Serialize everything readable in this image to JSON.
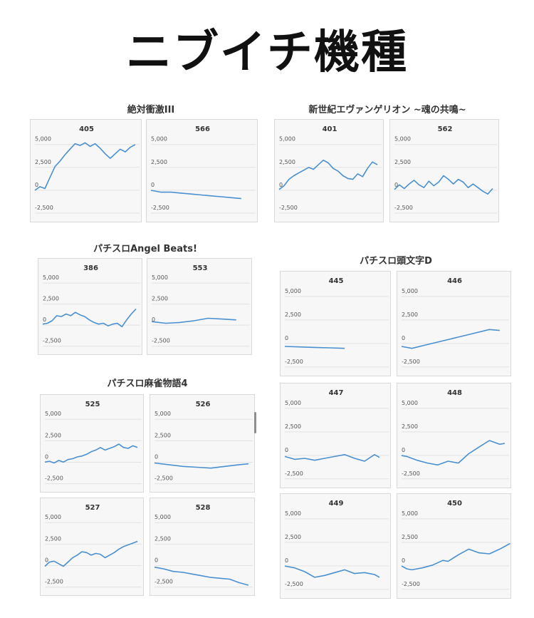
{
  "page_title": "ニブイチ機種",
  "style": {
    "line_color": "#4a90d0",
    "grid_color": "#e2e2e2",
    "panel_bg": "#f7f7f7",
    "panel_border": "#d9d9d9",
    "text_color": "#555555"
  },
  "groups": [
    {
      "title": "絶対衝激III"
    },
    {
      "title": "新世紀エヴァンゲリオン ~魂の共鳴~"
    },
    {
      "title": "パチスロAngel Beats!"
    },
    {
      "title": "パチスロ頭文字D"
    },
    {
      "title": "パチスロ麻雀物語4"
    }
  ],
  "chart_data": [
    {
      "type": "line",
      "title": "405",
      "group": "絶対衝激III",
      "yticks": [
        5000,
        2500,
        0,
        -2500
      ],
      "ytick_labels": [
        "5,000",
        "2,500",
        "0",
        "-2,500"
      ],
      "ylim": [
        -3200,
        5600
      ],
      "xlim": [
        0,
        20
      ],
      "series": [
        {
          "x": [
            0,
            1,
            2,
            3,
            4,
            5,
            6,
            7,
            8,
            9,
            10,
            11,
            12,
            13,
            14,
            15,
            16,
            17,
            18,
            19,
            20
          ],
          "y": [
            -400,
            0,
            -200,
            1000,
            2200,
            2800,
            3500,
            4100,
            4700,
            4500,
            4800,
            4400,
            4700,
            4200,
            3600,
            3100,
            3600,
            4100,
            3800,
            4300,
            4600
          ]
        }
      ]
    },
    {
      "type": "line",
      "title": "566",
      "group": "絶対衝激III",
      "yticks": [
        5000,
        2500,
        0,
        -2500
      ],
      "ytick_labels": [
        "5,000",
        "2,500",
        "0",
        "-2,500"
      ],
      "ylim": [
        -3200,
        5600
      ],
      "xlim": [
        0,
        20
      ],
      "series": [
        {
          "x": [
            0,
            2,
            4,
            6,
            8,
            10,
            12,
            14,
            16,
            18
          ],
          "y": [
            -400,
            -600,
            -600,
            -700,
            -800,
            -900,
            -1000,
            -1100,
            -1200,
            -1300
          ]
        }
      ]
    },
    {
      "type": "line",
      "title": "401",
      "group": "新世紀エヴァンゲリオン ~魂の共鳴~",
      "yticks": [
        5000,
        2500,
        0,
        -2500
      ],
      "ytick_labels": [
        "5,000",
        "2,500",
        "0",
        "-2,500"
      ],
      "ylim": [
        -3200,
        5600
      ],
      "xlim": [
        0,
        20
      ],
      "series": [
        {
          "x": [
            0,
            1,
            2,
            3,
            4,
            5,
            6,
            7,
            8,
            9,
            10,
            11,
            12,
            13,
            14,
            15,
            16,
            17,
            18,
            19,
            20
          ],
          "y": [
            -300,
            100,
            800,
            1200,
            1500,
            1800,
            2100,
            1900,
            2400,
            2900,
            2600,
            2000,
            1700,
            1200,
            900,
            800,
            1400,
            1100,
            2000,
            2700,
            2400
          ]
        }
      ]
    },
    {
      "type": "line",
      "title": "562",
      "group": "新世紀エヴァンゲリオン ~魂の共鳴~",
      "yticks": [
        5000,
        2500,
        0,
        -2500
      ],
      "ytick_labels": [
        "5,000",
        "2,500",
        "0",
        "-2,500"
      ],
      "ylim": [
        -3200,
        5600
      ],
      "xlim": [
        0,
        20
      ],
      "series": [
        {
          "x": [
            0,
            1,
            2,
            3,
            4,
            5,
            6,
            7,
            8,
            9,
            10,
            11,
            12,
            13,
            14,
            15,
            16,
            17,
            18,
            19,
            20
          ],
          "y": [
            -300,
            200,
            -200,
            300,
            700,
            200,
            -100,
            600,
            100,
            500,
            1200,
            800,
            300,
            800,
            500,
            -100,
            300,
            -100,
            -500,
            -800,
            -200
          ]
        }
      ]
    },
    {
      "type": "line",
      "title": "386",
      "group": "パチスロAngel Beats!",
      "yticks": [
        5000,
        2500,
        0,
        -2500
      ],
      "ytick_labels": [
        "5,000",
        "2,500",
        "0",
        "-2,500"
      ],
      "ylim": [
        -3200,
        5600
      ],
      "xlim": [
        0,
        20
      ],
      "series": [
        {
          "x": [
            0,
            1,
            2,
            3,
            4,
            5,
            6,
            7,
            8,
            9,
            10,
            11,
            12,
            13,
            14,
            15,
            16,
            17,
            18,
            19,
            20
          ],
          "y": [
            -300,
            -200,
            100,
            700,
            600,
            900,
            700,
            1100,
            800,
            600,
            200,
            -100,
            -300,
            -200,
            -500,
            -300,
            -200,
            -600,
            200,
            900,
            1500
          ]
        }
      ]
    },
    {
      "type": "line",
      "title": "553",
      "group": "パチスロAngel Beats!",
      "yticks": [
        5000,
        2500,
        0,
        -2500
      ],
      "ytick_labels": [
        "5,000",
        "2,500",
        "0",
        "-2,500"
      ],
      "ylim": [
        -3200,
        5600
      ],
      "xlim": [
        0,
        20
      ],
      "series": [
        {
          "x": [
            0,
            3,
            6,
            9,
            12,
            15,
            18
          ],
          "y": [
            0,
            -200,
            -100,
            100,
            400,
            300,
            200
          ]
        }
      ]
    },
    {
      "type": "line",
      "title": "445",
      "group": "パチスロ頭文字D",
      "yticks": [
        5000,
        2500,
        0,
        -2500
      ],
      "ytick_labels": [
        "5,000",
        "2,500",
        "0",
        "-2,500"
      ],
      "ylim": [
        -3200,
        5600
      ],
      "xlim": [
        0,
        20
      ],
      "series": [
        {
          "x": [
            0,
            3,
            6,
            9,
            12
          ],
          "y": [
            -700,
            -750,
            -800,
            -850,
            -900
          ]
        }
      ]
    },
    {
      "type": "line",
      "title": "446",
      "group": "パチスロ頭文字D",
      "yticks": [
        5000,
        2500,
        0,
        -2500
      ],
      "ytick_labels": [
        "5,000",
        "2,500",
        "0",
        "-2,500"
      ],
      "ylim": [
        -3200,
        5600
      ],
      "xlim": [
        0,
        20
      ],
      "series": [
        {
          "x": [
            0,
            2,
            5,
            8,
            11,
            14,
            17,
            19
          ],
          "y": [
            -700,
            -900,
            -500,
            -100,
            300,
            700,
            1100,
            1000
          ]
        }
      ]
    },
    {
      "type": "line",
      "title": "447",
      "group": "パチスロ頭文字D",
      "yticks": [
        5000,
        2500,
        0,
        -2500
      ],
      "ytick_labels": [
        "5,000",
        "2,500",
        "0",
        "-2,500"
      ],
      "ylim": [
        -3200,
        5600
      ],
      "xlim": [
        0,
        20
      ],
      "series": [
        {
          "x": [
            0,
            2,
            4,
            6,
            8,
            10,
            12,
            14,
            16,
            18,
            19
          ],
          "y": [
            -500,
            -800,
            -700,
            -900,
            -700,
            -500,
            -300,
            -700,
            -1000,
            -300,
            -600
          ]
        }
      ]
    },
    {
      "type": "line",
      "title": "448",
      "group": "パチスロ頭文字D",
      "yticks": [
        5000,
        2500,
        0,
        -2500
      ],
      "ytick_labels": [
        "5,000",
        "2,500",
        "0",
        "-2,500"
      ],
      "ylim": [
        -3200,
        5600
      ],
      "xlim": [
        0,
        20
      ],
      "series": [
        {
          "x": [
            0,
            1,
            3,
            5,
            7,
            9,
            11,
            13,
            15,
            17,
            19,
            20
          ],
          "y": [
            -400,
            -500,
            -900,
            -1200,
            -1400,
            -1000,
            -1200,
            -200,
            500,
            1200,
            800,
            900
          ]
        }
      ]
    },
    {
      "type": "line",
      "title": "449",
      "group": "パチスロ頭文字D",
      "yticks": [
        5000,
        2500,
        0,
        -2500
      ],
      "ytick_labels": [
        "5,000",
        "2,500",
        "0",
        "-2,500"
      ],
      "ylim": [
        -3200,
        5600
      ],
      "xlim": [
        0,
        20
      ],
      "series": [
        {
          "x": [
            0,
            2,
            4,
            6,
            8,
            10,
            12,
            14,
            16,
            18,
            19
          ],
          "y": [
            -400,
            -600,
            -1000,
            -1600,
            -1400,
            -1100,
            -800,
            -1200,
            -1100,
            -1300,
            -1600
          ]
        }
      ]
    },
    {
      "type": "line",
      "title": "450",
      "group": "パチスロ頭文字D",
      "yticks": [
        5000,
        2500,
        0,
        -2500
      ],
      "ytick_labels": [
        "5,000",
        "2,500",
        "0",
        "-2,500"
      ],
      "ylim": [
        -3200,
        5600
      ],
      "xlim": [
        0,
        20
      ],
      "series": [
        {
          "x": [
            0,
            1,
            2,
            4,
            6,
            8,
            9,
            11,
            13,
            15,
            17,
            19,
            21
          ],
          "y": [
            -400,
            -700,
            -800,
            -600,
            -300,
            200,
            100,
            800,
            1400,
            1000,
            900,
            1400,
            2000
          ]
        }
      ]
    },
    {
      "type": "line",
      "title": "525",
      "group": "パチスロ麻雀物語4",
      "yticks": [
        5000,
        2500,
        0,
        -2500
      ],
      "ytick_labels": [
        "5,000",
        "2,500",
        "0",
        "-2,500"
      ],
      "ylim": [
        -3200,
        5600
      ],
      "xlim": [
        0,
        20
      ],
      "series": [
        {
          "x": [
            0,
            1,
            2,
            3,
            4,
            5,
            6,
            7,
            8,
            9,
            10,
            11,
            12,
            13,
            14,
            15,
            16,
            17,
            18,
            19,
            20
          ],
          "y": [
            -400,
            -300,
            -500,
            -200,
            -400,
            -100,
            0,
            200,
            300,
            500,
            800,
            1000,
            1300,
            1000,
            1200,
            1400,
            1700,
            1300,
            1200,
            1500,
            1300
          ]
        }
      ]
    },
    {
      "type": "line",
      "title": "526",
      "group": "パチスロ麻雀物語4",
      "yticks": [
        5000,
        2500,
        0,
        -2500
      ],
      "ytick_labels": [
        "5,000",
        "2,500",
        "0",
        "-2,500"
      ],
      "ylim": [
        -3200,
        5600
      ],
      "xlim": [
        0,
        20
      ],
      "series": [
        {
          "x": [
            0,
            3,
            6,
            9,
            12,
            15,
            18,
            20
          ],
          "y": [
            -500,
            -700,
            -900,
            -1000,
            -1100,
            -900,
            -700,
            -600
          ]
        }
      ]
    },
    {
      "type": "line",
      "title": "527",
      "group": "パチスロ麻雀物語4",
      "yticks": [
        5000,
        2500,
        0,
        -2500
      ],
      "ytick_labels": [
        "5,000",
        "2,500",
        "0",
        "-2,500"
      ],
      "ylim": [
        -3200,
        5600
      ],
      "xlim": [
        0,
        20
      ],
      "series": [
        {
          "x": [
            0,
            1,
            2,
            3,
            4,
            5,
            6,
            7,
            8,
            9,
            10,
            11,
            12,
            13,
            14,
            15,
            16,
            17,
            18,
            19,
            20
          ],
          "y": [
            -500,
            0,
            100,
            -200,
            -500,
            0,
            500,
            800,
            1200,
            1100,
            800,
            1000,
            900,
            500,
            800,
            1100,
            1500,
            1800,
            2000,
            2200,
            2400
          ]
        }
      ]
    },
    {
      "type": "line",
      "title": "528",
      "group": "パチスロ麻雀物語4",
      "yticks": [
        5000,
        2500,
        0,
        -2500
      ],
      "ytick_labels": [
        "5,000",
        "2,500",
        "0",
        "-2,500"
      ],
      "ylim": [
        -3200,
        5600
      ],
      "xlim": [
        0,
        20
      ],
      "series": [
        {
          "x": [
            0,
            2,
            4,
            6,
            8,
            10,
            12,
            14,
            16,
            18,
            20
          ],
          "y": [
            -600,
            -800,
            -1100,
            -1200,
            -1400,
            -1600,
            -1800,
            -1900,
            -2000,
            -2400,
            -2700
          ]
        }
      ]
    }
  ]
}
